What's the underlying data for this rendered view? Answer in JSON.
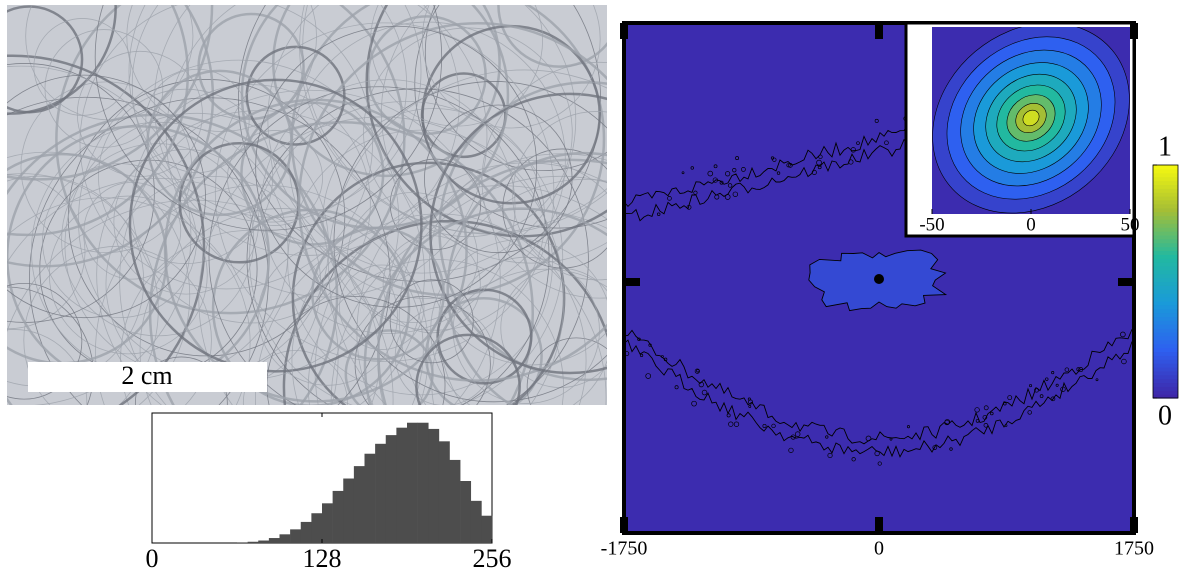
{
  "image": {
    "scale_bar": "2 cm"
  },
  "chart_data": [
    {
      "type": "histogram",
      "color": "#4d4d4d",
      "bins": [
        0,
        8,
        16,
        24,
        32,
        40,
        48,
        56,
        64,
        72,
        80,
        88,
        96,
        104,
        112,
        120,
        128,
        136,
        144,
        152,
        160,
        168,
        176,
        184,
        192,
        200,
        208,
        216,
        224,
        232,
        240,
        248,
        256
      ],
      "values": [
        0,
        0,
        0,
        0,
        0,
        0,
        0,
        0,
        0.5,
        1,
        2,
        4,
        7,
        11,
        17,
        24,
        32,
        42,
        52,
        62,
        72,
        80,
        87,
        93,
        97,
        97,
        92,
        82,
        67,
        50,
        34,
        22
      ],
      "xlim": [
        0,
        256
      ],
      "xticks": [
        0,
        128,
        256
      ],
      "ylim": [
        0,
        100
      ]
    },
    {
      "type": "contour",
      "xlim": [
        -1750,
        1750
      ],
      "xticks": [
        -1750,
        0,
        1750
      ],
      "clim": [
        0,
        1
      ],
      "cticks": [
        0,
        1
      ],
      "inset": {
        "xlim": [
          -50,
          50
        ],
        "xticks": [
          -50,
          0,
          50
        ],
        "levels": [
          0.1,
          0.2,
          0.3,
          0.4,
          0.5,
          0.6,
          0.7,
          0.8,
          0.9
        ]
      }
    }
  ]
}
